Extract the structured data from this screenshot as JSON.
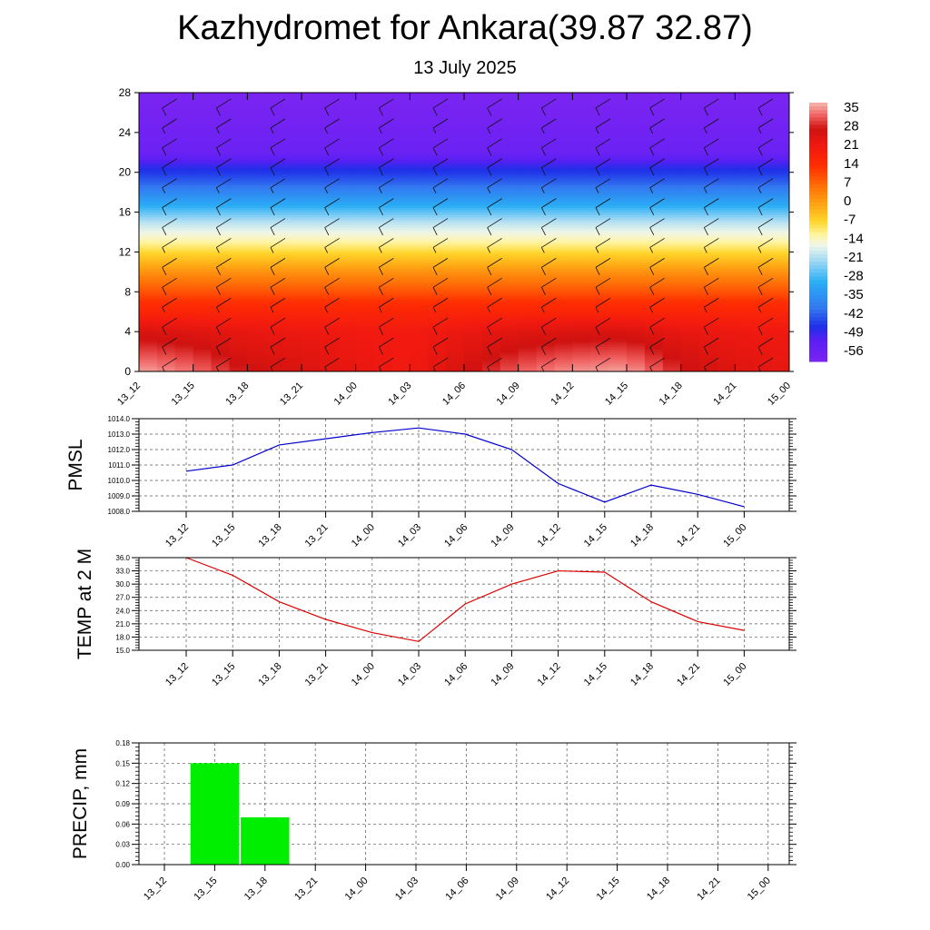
{
  "header": {
    "title": "Kazhydromet for Ankara(39.87 32.87)",
    "subtitle": "13 July 2025"
  },
  "chart_data": [
    {
      "type": "heatmap",
      "name": "cross-section",
      "x": [
        "13_12",
        "13_15",
        "13_18",
        "13_21",
        "14_00",
        "14_03",
        "14_06",
        "14_09",
        "14_12",
        "14_15",
        "14_18",
        "14_21",
        "15_00"
      ],
      "y_ticks": [
        0,
        4,
        8,
        12,
        16,
        20,
        24,
        28
      ],
      "ylim": [
        0,
        28
      ],
      "colorbar_labels": [
        "35",
        "28",
        "21",
        "14",
        "7",
        "0",
        "-7",
        "-14",
        "-21",
        "-28",
        "-35",
        "-42",
        "-49",
        "-56"
      ],
      "colorbar_range": [
        -60,
        38
      ],
      "color_stops": [
        {
          "v": -60,
          "c": "#7b24f2"
        },
        {
          "v": -52,
          "c": "#5a1ff4"
        },
        {
          "v": -47,
          "c": "#1f2fe8"
        },
        {
          "v": -40,
          "c": "#3277f0"
        },
        {
          "v": -30,
          "c": "#2aaef5"
        },
        {
          "v": -22,
          "c": "#9fd8f5"
        },
        {
          "v": -16,
          "c": "#f0f6e8"
        },
        {
          "v": -12,
          "c": "#fff4a0"
        },
        {
          "v": -7,
          "c": "#ffd52a"
        },
        {
          "v": 0,
          "c": "#ffa012"
        },
        {
          "v": 7,
          "c": "#ff6a06"
        },
        {
          "v": 14,
          "c": "#ff2e02"
        },
        {
          "v": 21,
          "c": "#f21a10"
        },
        {
          "v": 28,
          "c": "#cf1210"
        },
        {
          "v": 33,
          "c": "#f06060"
        },
        {
          "v": 38,
          "c": "#f5b8b0"
        }
      ],
      "profile": [
        {
          "h": 0,
          "t": 28
        },
        {
          "h": 4,
          "t": 23
        },
        {
          "h": 7,
          "t": 14
        },
        {
          "h": 10,
          "t": 2
        },
        {
          "h": 13,
          "t": -12
        },
        {
          "h": 15,
          "t": -20
        },
        {
          "h": 17,
          "t": -32
        },
        {
          "h": 19,
          "t": -42
        },
        {
          "h": 20.5,
          "t": -48
        },
        {
          "h": 22,
          "t": -56
        },
        {
          "h": 28,
          "t": -60
        }
      ],
      "surface_temps": [
        33,
        30,
        24,
        22,
        19,
        17,
        23,
        29,
        32,
        33,
        25,
        21,
        19
      ]
    },
    {
      "type": "line",
      "ylabel": "PMSL",
      "x": [
        "13_12",
        "13_15",
        "13_18",
        "13_21",
        "14_00",
        "14_03",
        "14_06",
        "14_09",
        "14_12",
        "14_15",
        "14_18",
        "14_21",
        "15_00"
      ],
      "values": [
        1010.6,
        1011.0,
        1012.3,
        1012.7,
        1013.1,
        1013.4,
        1013.0,
        1012.0,
        1009.8,
        1008.6,
        1009.7,
        1009.1,
        1008.3
      ],
      "y_ticks": [
        "1008.0",
        "1009.0",
        "1010.0",
        "1011.0",
        "1012.0",
        "1013.0",
        "1014.0"
      ],
      "ylim": [
        1008.0,
        1014.0
      ],
      "color": "#0000cc"
    },
    {
      "type": "line",
      "ylabel": "TEMP at 2 M",
      "x": [
        "13_12",
        "13_15",
        "13_18",
        "13_21",
        "14_00",
        "14_03",
        "14_06",
        "14_09",
        "14_12",
        "14_15",
        "14_18",
        "14_21",
        "15_00"
      ],
      "values": [
        36.0,
        32.0,
        26.0,
        22.0,
        19.0,
        17.0,
        25.5,
        30.0,
        33.0,
        32.7,
        26.0,
        21.5,
        19.5
      ],
      "y_ticks": [
        "15.0",
        "18.0",
        "21.0",
        "24.0",
        "27.0",
        "30.0",
        "33.0",
        "36.0"
      ],
      "ylim": [
        15.0,
        36.0
      ],
      "color": "#dd0000"
    },
    {
      "type": "bar",
      "ylabel": "PRECIP, mm",
      "categories": [
        "13_12",
        "13_15",
        "13_18",
        "13_21",
        "14_00",
        "14_03",
        "14_06",
        "14_09",
        "14_12",
        "14_15",
        "14_18",
        "14_21",
        "15_00"
      ],
      "values": [
        0,
        0.15,
        0.07,
        0,
        0,
        0,
        0,
        0,
        0,
        0,
        0,
        0,
        0
      ],
      "y_ticks": [
        "0.00",
        "0.03",
        "0.06",
        "0.09",
        "0.12",
        "0.15",
        "0.18"
      ],
      "ylim": [
        0,
        0.18
      ],
      "color": "#00ee00"
    }
  ]
}
